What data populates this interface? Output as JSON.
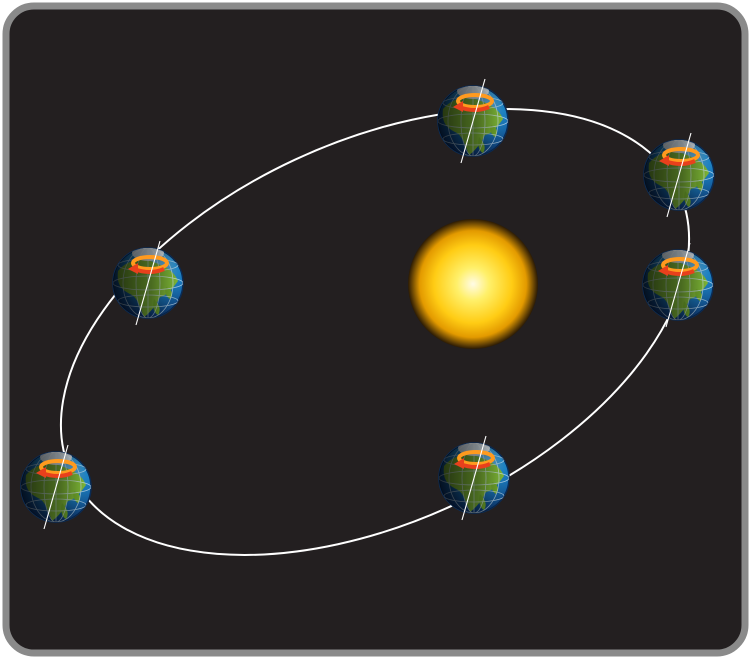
{
  "diagram": {
    "type": "earth-orbit-around-sun",
    "colors": {
      "frame": "#8a8a8a",
      "background": "#231f20",
      "orbit": "#ffffff",
      "sun_core": "#fff6c2",
      "sun_mid": "#ffd21a",
      "sun_edge": "#e8a000",
      "ocean": "#1e88c8",
      "land": "#7cb833",
      "night": "#0b1e0a",
      "rotation_arrow": "#e8401c",
      "pole_glow": "#ff9a1e"
    },
    "icons": [
      "sun-icon",
      "earth-icon",
      "rotation-arrow-icon",
      "axis-line-icon"
    ],
    "earth_count": 6
  }
}
